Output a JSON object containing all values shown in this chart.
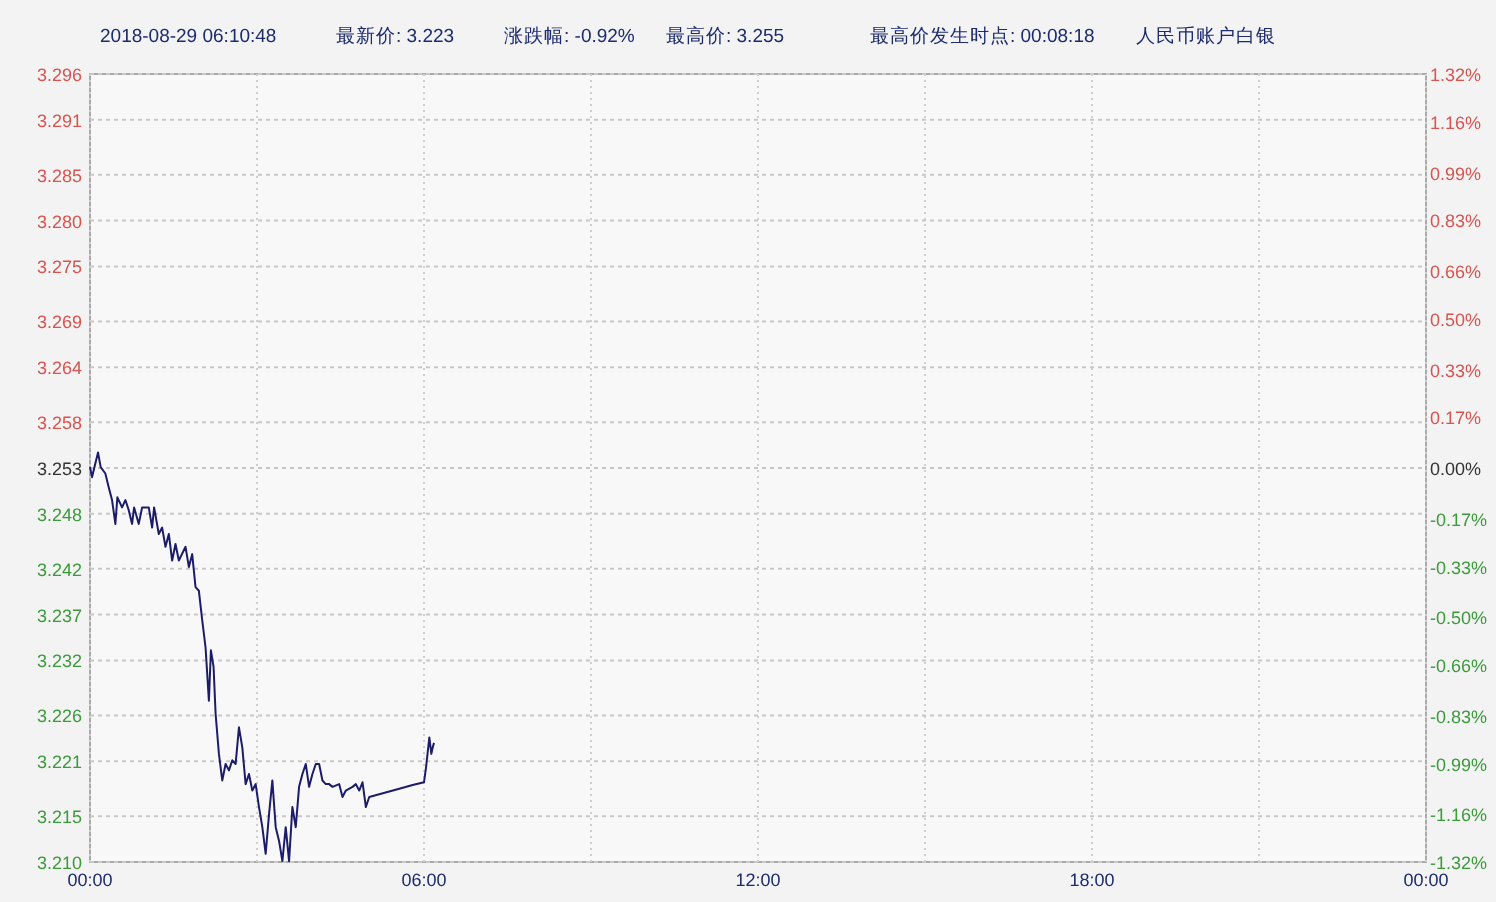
{
  "chart_data": {
    "type": "line",
    "title": "2018-08-29 06:10:48",
    "annotations": [
      "最新价: 3.223",
      "涨跌幅: -0.92%",
      "最高价: 3.255",
      "最高价发生时点: 00:08:18",
      "人民币账户白银"
    ],
    "xlim": [
      0,
      24
    ],
    "xticks": [
      {
        "value": 0,
        "label": "00:00"
      },
      {
        "value": 3,
        "label": null
      },
      {
        "value": 6,
        "label": "06:00"
      },
      {
        "value": 9,
        "label": null
      },
      {
        "value": 12,
        "label": "12:00"
      },
      {
        "value": 15,
        "label": null
      },
      {
        "value": 18,
        "label": "18:00"
      },
      {
        "value": 21,
        "label": null
      },
      {
        "value": 24,
        "label": "00:00"
      }
    ],
    "ylim": [
      3.21,
      3.296
    ],
    "yticks": [
      3.296,
      3.291,
      3.285,
      {
        "value": 3.28,
        "label": "3.280"
      },
      3.275,
      3.269,
      3.264,
      3.258,
      3.253,
      3.248,
      3.242,
      3.237,
      3.232,
      3.226,
      3.221,
      3.215,
      {
        "value": 3.21,
        "label": "3.210"
      }
    ],
    "y2lim": [
      -1.32,
      1.32
    ],
    "y2ticks": [
      {
        "value": 1.32,
        "label": "1.32%"
      },
      {
        "value": 1.16,
        "label": "1.16%"
      },
      {
        "value": 0.99,
        "label": "0.99%"
      },
      {
        "value": 0.83,
        "label": "0.83%"
      },
      {
        "value": 0.66,
        "label": "0.66%"
      },
      {
        "value": 0.5,
        "label": "0.50%"
      },
      {
        "value": 0.33,
        "label": "0.33%"
      },
      {
        "value": 0.17,
        "label": "0.17%"
      },
      {
        "value": 0,
        "label": "0.00%"
      },
      {
        "value": -0.17,
        "label": "-0.17%"
      },
      {
        "value": -0.33,
        "label": "-0.33%"
      },
      {
        "value": -0.5,
        "label": "-0.50%"
      },
      {
        "value": -0.66,
        "label": "-0.66%"
      },
      {
        "value": -0.83,
        "label": "-0.83%"
      },
      {
        "value": -0.99,
        "label": "-0.99%"
      },
      {
        "value": -1.16,
        "label": "-1.16%"
      },
      {
        "value": -1.32,
        "label": "-1.32%"
      }
    ],
    "grid": true,
    "series": [
      {
        "color": "#1c1c6b",
        "x": [
          0,
          0.036,
          0.096,
          0.144,
          0.192,
          0.276,
          0.336,
          0.396,
          0.456,
          0.492,
          0.576,
          0.636,
          0.696,
          0.756,
          0.792,
          0.876,
          0.936,
          1.056,
          1.116,
          1.152,
          1.236,
          1.296,
          1.356,
          1.416,
          1.476,
          1.536,
          1.596,
          1.716,
          1.776,
          1.836,
          1.896,
          1.956,
          2.016,
          2.076,
          2.136,
          2.172,
          2.22,
          2.256,
          2.316,
          2.376,
          2.436,
          2.496,
          2.556,
          2.616,
          2.676,
          2.736,
          2.796,
          2.856,
          2.916,
          2.976,
          3.036,
          3.096,
          3.156,
          3.216,
          3.276,
          3.336,
          3.396,
          3.456,
          3.516,
          3.576,
          3.636,
          3.696,
          3.756,
          3.816,
          3.876,
          3.936,
          3.996,
          4.056,
          4.116,
          4.176,
          4.236,
          4.296,
          4.356,
          4.476,
          4.536,
          4.596,
          4.716,
          4.776,
          4.836,
          4.896,
          4.956,
          5.016,
          5.196,
          5.556,
          5.796,
          6.0,
          6.036,
          6.096,
          6.132,
          6.156,
          6.18
        ],
        "values": [
          3.2531,
          3.252,
          3.2535,
          3.2547,
          3.2531,
          3.2524,
          3.2509,
          3.2495,
          3.2469,
          3.2498,
          3.2487,
          3.2495,
          3.2484,
          3.2469,
          3.2487,
          3.2469,
          3.2487,
          3.2487,
          3.2465,
          3.2487,
          3.2458,
          3.2465,
          3.2444,
          3.2458,
          3.2429,
          3.2447,
          3.2429,
          3.2444,
          3.2422,
          3.2436,
          3.24,
          3.2396,
          3.2364,
          3.2334,
          3.2276,
          3.2331,
          3.2313,
          3.2262,
          3.2218,
          3.2189,
          3.2207,
          3.22,
          3.2211,
          3.2207,
          3.2247,
          3.2225,
          3.2185,
          3.2196,
          3.2178,
          3.2185,
          3.216,
          3.2138,
          3.2109,
          3.2152,
          3.2189,
          3.2138,
          3.2123,
          3.2101,
          3.2138,
          3.2101,
          3.216,
          3.2138,
          3.2182,
          3.2196,
          3.2207,
          3.2182,
          3.2196,
          3.2207,
          3.2207,
          3.2189,
          3.2185,
          3.2185,
          3.2182,
          3.2185,
          3.2171,
          3.2178,
          3.2182,
          3.2185,
          3.2178,
          3.2187,
          3.216,
          3.2171,
          3.2174,
          3.218,
          3.2184,
          3.2187,
          3.2203,
          3.2236,
          3.2218,
          3.2225,
          3.223
        ]
      }
    ]
  }
}
